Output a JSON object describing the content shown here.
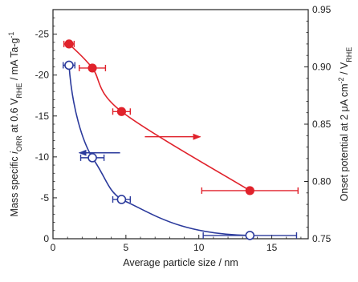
{
  "chart_data": {
    "type": "scatter",
    "xlabel": "Average particle size  /  nm",
    "ylabel_left": {
      "prefix": "Mass specific ",
      "i": "i",
      "sub_orr": "ORR",
      "mid": "  at 0.6 V",
      "sub_rhe": "RHE",
      "suffix": "  /  mA Ta-g",
      "sup": "-1"
    },
    "ylabel_right": {
      "prefix": "Onset potential  at 2 μA cm",
      "sup": "-2",
      "mid": "  /  V",
      "sub_rhe": "RHE"
    },
    "xlim": [
      0,
      17.5
    ],
    "ylim_left": [
      0,
      -28
    ],
    "ylim_right": [
      0.75,
      0.95
    ],
    "x_ticks": [
      "0",
      "5",
      "10",
      "15"
    ],
    "x_tick_values": [
      0,
      5,
      10,
      15
    ],
    "y_left_ticks": [
      "0",
      "-5",
      "-10",
      "-15",
      "-20",
      "-25"
    ],
    "y_left_tick_values": [
      0,
      -5,
      -10,
      -15,
      -20,
      -25
    ],
    "y_right_ticks": [
      "0.75",
      "0.80",
      "0.85",
      "0.90",
      "0.95"
    ],
    "y_right_tick_values": [
      0.75,
      0.8,
      0.85,
      0.9,
      0.95
    ],
    "series": [
      {
        "axis": "left",
        "marker": "open-circle",
        "color": "#2b3a9c",
        "points": [
          {
            "x": 1.1,
            "y": -21.2,
            "xerr": [
              0.4,
              0.4
            ]
          },
          {
            "x": 2.7,
            "y": -9.9,
            "xerr": [
              0.8,
              0.8
            ]
          },
          {
            "x": 4.7,
            "y": -4.8,
            "xerr": [
              0.6,
              0.6
            ]
          },
          {
            "x": 13.5,
            "y": -0.4,
            "xerr": [
              3.2,
              3.2
            ]
          }
        ],
        "arrow": {
          "from": [
            4.6,
            -10.5
          ],
          "to": [
            1.8,
            -10.5
          ]
        }
      },
      {
        "axis": "right",
        "marker": "filled-circle",
        "color": "#e0222b",
        "points": [
          {
            "x": 1.1,
            "y": 0.92,
            "xerr": [
              0.35,
              0.35
            ]
          },
          {
            "x": 2.7,
            "y": 0.899,
            "xerr": [
              0.9,
              0.9
            ]
          },
          {
            "x": 4.7,
            "y": 0.861,
            "xerr": [
              0.6,
              0.6
            ]
          },
          {
            "x": 13.5,
            "y": 0.792,
            "xerr": [
              3.3,
              3.3
            ]
          }
        ],
        "arrow": {
          "from": [
            6.3,
            0.839
          ],
          "to": [
            10.1,
            0.839
          ]
        }
      }
    ],
    "colors": {
      "axis": "#222222",
      "blue": "#2b3a9c",
      "red": "#e0222b"
    }
  }
}
